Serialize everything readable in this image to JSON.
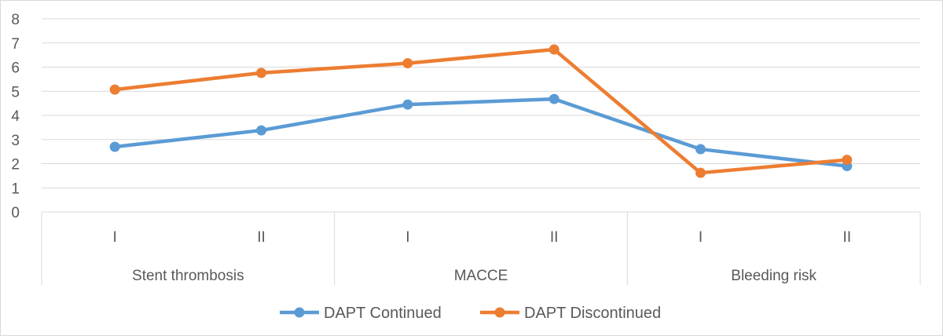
{
  "chart_data": {
    "type": "line",
    "title": "",
    "xlabel": "",
    "ylabel": "",
    "ylim": [
      0,
      8
    ],
    "yticks": [
      0,
      1,
      2,
      3,
      4,
      5,
      6,
      7,
      8
    ],
    "grid": true,
    "legend_position": "bottom",
    "groups": [
      {
        "label": "Stent thrombosis",
        "categories": [
          "I",
          "II"
        ]
      },
      {
        "label": "MACCE",
        "categories": [
          "I",
          "II"
        ]
      },
      {
        "label": "Bleeding risk",
        "categories": [
          "I",
          "II"
        ]
      }
    ],
    "series": [
      {
        "name": "DAPT Continued",
        "color": "#5b9bd5",
        "values": [
          2.7,
          3.38,
          4.45,
          4.68,
          2.6,
          1.9
        ]
      },
      {
        "name": "DAPT Discontinued",
        "color": "#ed7d31",
        "values": [
          5.07,
          5.76,
          6.16,
          6.73,
          1.62,
          2.16
        ]
      }
    ]
  }
}
